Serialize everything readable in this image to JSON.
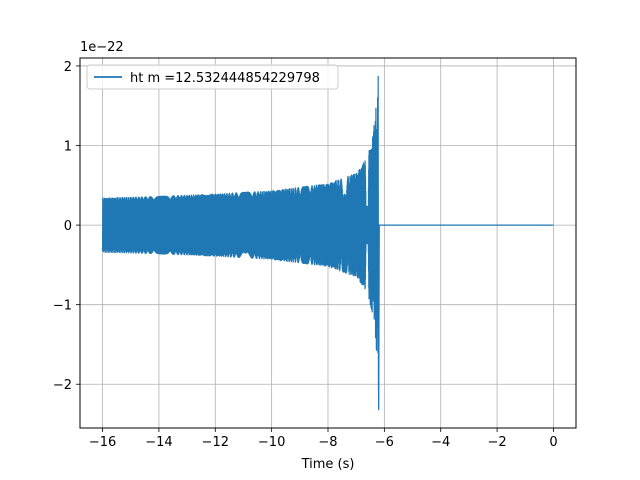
{
  "chart_data": {
    "type": "line",
    "xlabel": "Time (s)",
    "ylabel": "",
    "offset_label": "1e−22",
    "xlim": [
      -16.8,
      0.8
    ],
    "ylim": [
      -2.55,
      2.1
    ],
    "x_ticks": [
      -16,
      -14,
      -12,
      -10,
      -8,
      -6,
      -4,
      -2,
      0
    ],
    "x_tick_labels": [
      "−16",
      "−14",
      "−12",
      "−10",
      "−8",
      "−6",
      "−4",
      "−2",
      "0"
    ],
    "y_ticks": [
      -2,
      -1,
      0,
      1,
      2
    ],
    "y_tick_labels": [
      "−2",
      "−1",
      "0",
      "1",
      "2"
    ],
    "grid": true,
    "legend_position": "top-left",
    "series": [
      {
        "name": "ht m =12.532444854229798",
        "color": "#1f77b4",
        "signal": {
          "start_time": -16.0,
          "merger_time": -6.2,
          "end_time": 0.0,
          "envelope_points": [
            [
              -16.0,
              0.34
            ],
            [
              -14.0,
              0.36
            ],
            [
              -12.0,
              0.39
            ],
            [
              -10.0,
              0.43
            ],
            [
              -8.0,
              0.52
            ],
            [
              -7.0,
              0.65
            ],
            [
              -6.6,
              0.85
            ],
            [
              -6.4,
              1.15
            ],
            [
              -6.3,
              1.5
            ],
            [
              -6.25,
              1.85
            ]
          ],
          "peak_max": 1.87,
          "peak_min": -2.32,
          "post_merger_value": 0.0
        }
      }
    ]
  }
}
